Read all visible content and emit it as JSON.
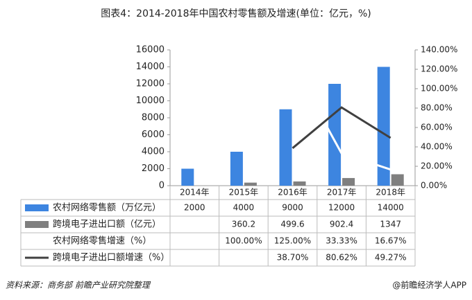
{
  "chart_data": {
    "type": "bar-line-table",
    "title": "图表4：2014-2018年中国农村零售额及增速(单位：亿元，%)",
    "categories": [
      "2014年",
      "2015年",
      "2016年",
      "2017年",
      "2018年"
    ],
    "series": [
      {
        "name": "农村网络零售额（万亿元）",
        "kind": "bar",
        "color": "#3d85e0",
        "values": [
          2000,
          4000,
          9000,
          12000,
          14000
        ]
      },
      {
        "name": "跨境电子进出口额（亿元）",
        "kind": "bar",
        "color": "#7f7f7f",
        "values": [
          null,
          360.2,
          499.6,
          902.4,
          1347
        ]
      },
      {
        "name": "农村网络零售增速（%）",
        "kind": "line",
        "axis": "y2",
        "color": "#ffffff",
        "values": [
          null,
          100,
          125,
          33.33,
          16.67
        ],
        "value_labels": [
          null,
          "100.00%",
          "125.00%",
          "33.33%",
          "16.67%"
        ]
      },
      {
        "name": "跨境电子进出口额增速（%）",
        "kind": "line",
        "axis": "y2",
        "color": "#404040",
        "values": [
          null,
          null,
          38.7,
          80.62,
          49.27
        ],
        "value_labels": [
          null,
          null,
          "38.70%",
          "80.62%",
          "49.27%"
        ]
      }
    ],
    "ylim": [
      0,
      16000
    ],
    "yticks": [
      0,
      2000,
      4000,
      6000,
      8000,
      10000,
      12000,
      14000,
      16000
    ],
    "y2lim": [
      0,
      140
    ],
    "y2ticks": [
      {
        "value": 0,
        "label": "0.00%"
      },
      {
        "value": 20,
        "label": "20.00%"
      },
      {
        "value": 40,
        "label": "40.00%"
      },
      {
        "value": 60,
        "label": "60.00%"
      },
      {
        "value": 80,
        "label": "80.00%"
      },
      {
        "value": 100,
        "label": "100.00%"
      },
      {
        "value": 120,
        "label": "120.00%"
      },
      {
        "value": 140,
        "label": "140.00%"
      }
    ],
    "source": "资料来源：商务部 前瞻产业研究院整理",
    "credit": "@前瞻经济学人APP"
  }
}
